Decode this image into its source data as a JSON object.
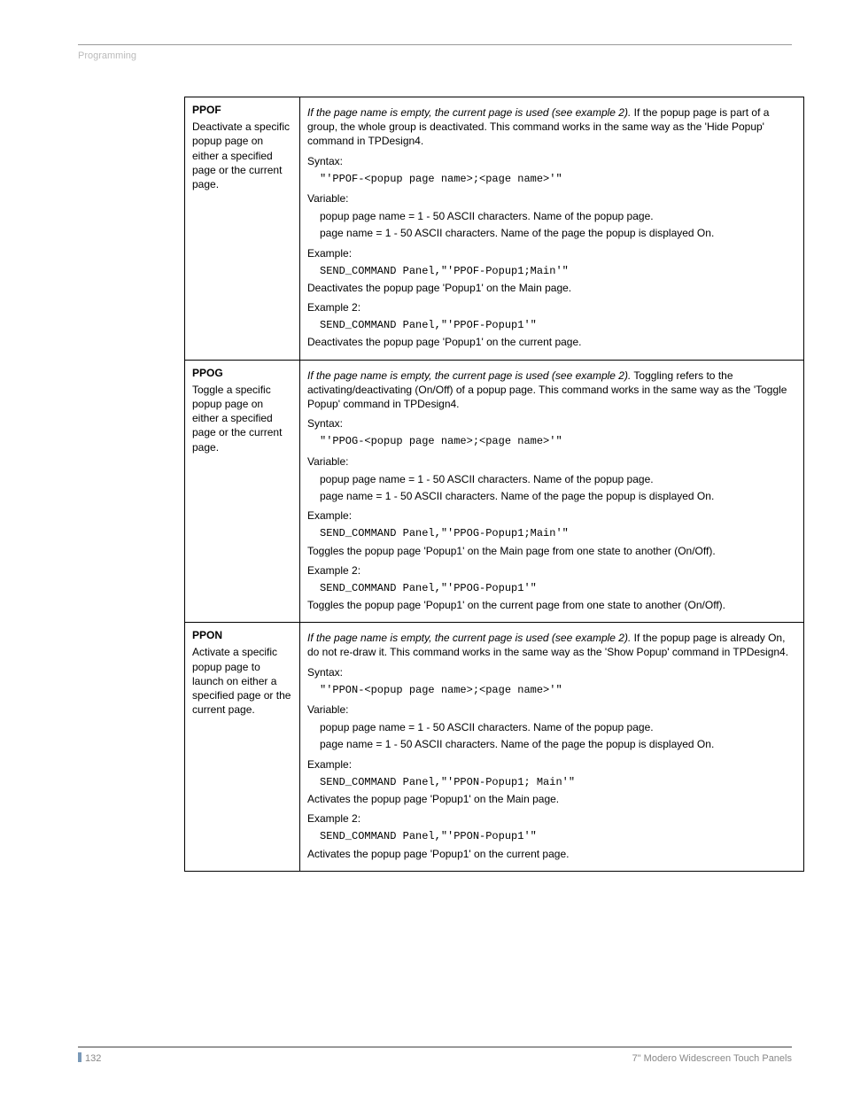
{
  "header": {
    "section": "Programming"
  },
  "footer": {
    "page_number": "132",
    "doc_title": "7\" Modero Widescreen Touch Panels"
  },
  "rows": [
    {
      "cmd": "PPOF",
      "cmd_desc": "Deactivate a specific popup page on either a specified page or the current page.",
      "intro_italic": "If the page name is empty, the current page is used (see example 2).",
      "intro_rest": " If the popup page is part of a group, the whole group is deactivated. This command works in the same way as the 'Hide Popup' command in TPDesign4.",
      "syntax_label": "Syntax:",
      "syntax_code": "\"'PPOF-<popup page name>;<page name>'\"",
      "variable_label": "Variable:",
      "var1": "popup page name = 1 - 50 ASCII characters. Name of the popup page.",
      "var2": "page name = 1 - 50 ASCII characters. Name of the page the popup is displayed On.",
      "example_label": "Example:",
      "example_code": "SEND_COMMAND Panel,\"'PPOF-Popup1;Main'\"",
      "example_result": "Deactivates the popup page 'Popup1' on the Main page.",
      "example2_label": "Example 2:",
      "example2_code": "SEND_COMMAND Panel,\"'PPOF-Popup1'\"",
      "example2_result": "Deactivates the popup page 'Popup1' on the current page."
    },
    {
      "cmd": "PPOG",
      "cmd_desc": "Toggle a specific popup page on either a specified page or the current page.",
      "intro_italic": "If the page name is empty, the current page is used (see example 2).",
      "intro_rest": " Toggling refers to the activating/deactivating (On/Off) of a popup page. This command works in the same way as the 'Toggle Popup' command in TPDesign4.",
      "syntax_label": "Syntax:",
      "syntax_code": "\"'PPOG-<popup page name>;<page name>'\"",
      "variable_label": "Variable:",
      "var1": "popup page name = 1 - 50 ASCII characters. Name of the popup page.",
      "var2": "page name = 1 - 50 ASCII characters. Name of the page the popup is displayed On.",
      "example_label": "Example:",
      "example_code": "SEND_COMMAND Panel,\"'PPOG-Popup1;Main'\"",
      "example_result": "Toggles the popup page 'Popup1' on the Main page from one state to another (On/Off).",
      "example2_label": "Example 2:",
      "example2_code": "SEND_COMMAND Panel,\"'PPOG-Popup1'\"",
      "example2_result": "Toggles the popup page 'Popup1' on the current page from one state to another (On/Off)."
    },
    {
      "cmd": "PPON",
      "cmd_desc": "Activate a specific popup page to launch on either a specified page or the current page.",
      "intro_italic": "If the page name is empty, the current page is used (see example 2).",
      "intro_rest": " If the popup page is already On, do not re-draw it. This command works in the same way as the 'Show Popup' command in TPDesign4.",
      "syntax_label": "Syntax:",
      "syntax_code": "\"'PPON-<popup page name>;<page name>'\"",
      "variable_label": "Variable:",
      "var1": "popup page name = 1 - 50 ASCII characters. Name of the popup page.",
      "var2": "page name = 1 - 50 ASCII characters. Name of the page the popup is displayed On.",
      "example_label": "Example:",
      "example_code": "SEND_COMMAND Panel,\"'PPON-Popup1; Main'\"",
      "example_result": "Activates the popup page 'Popup1' on the Main page.",
      "example2_label": "Example 2:",
      "example2_code": "SEND_COMMAND Panel,\"'PPON-Popup1'\"",
      "example2_result": "Activates the popup page 'Popup1' on the current page."
    }
  ]
}
